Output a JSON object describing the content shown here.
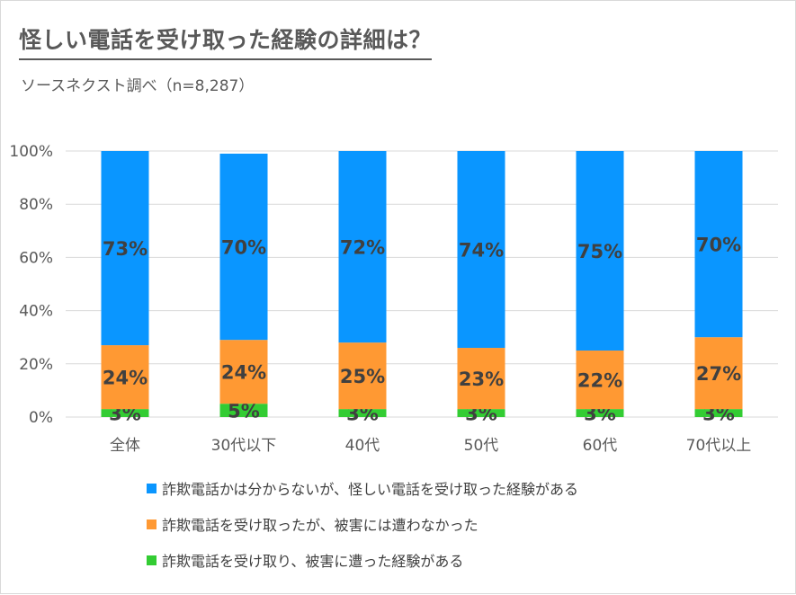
{
  "title": "怪しい電話を受け取った経験の詳細は？",
  "subtitle": "ソースネクスト調べ（n=8,287）",
  "colors": {
    "blue": "#0a96ff",
    "orange": "#ff9933",
    "green": "#33cc33",
    "grid": "#d9d9d9",
    "axis_text": "#595959",
    "label_text": "#404040"
  },
  "chart_data": {
    "type": "bar",
    "stacked": true,
    "normalized": true,
    "categories": [
      "全体",
      "30代以下",
      "40代",
      "50代",
      "60代",
      "70代以上"
    ],
    "series": [
      {
        "name": "詐欺電話を受け取り、被害に遭った経験がある",
        "color": "#33cc33",
        "values": [
          3,
          5,
          3,
          3,
          3,
          3
        ],
        "labels": [
          "3%",
          "5%",
          "3%",
          "3%",
          "3%",
          "3%"
        ]
      },
      {
        "name": "詐欺電話を受け取ったが、被害には遭わなかった",
        "color": "#ff9933",
        "values": [
          24,
          24,
          25,
          23,
          22,
          27
        ],
        "labels": [
          "24%",
          "24%",
          "25%",
          "23%",
          "22%",
          "27%"
        ]
      },
      {
        "name": "詐欺電話かは分からないが、怪しい電話を受け取った経験がある",
        "color": "#0a96ff",
        "values": [
          73,
          70,
          72,
          74,
          75,
          70
        ],
        "labels": [
          "73%",
          "70%",
          "72%",
          "74%",
          "75%",
          "70%"
        ]
      }
    ],
    "ylim": [
      0,
      100
    ],
    "yticks": [
      "0%",
      "20%",
      "40%",
      "60%",
      "80%",
      "100%"
    ],
    "legend_position": "bottom",
    "grid": true
  },
  "legend": [
    {
      "label": "詐欺電話かは分からないが、怪しい電話を受け取った経験がある",
      "color": "#0a96ff"
    },
    {
      "label": "詐欺電話を受け取ったが、被害には遭わなかった",
      "color": "#ff9933"
    },
    {
      "label": "詐欺電話を受け取り、被害に遭った経験がある",
      "color": "#33cc33"
    }
  ]
}
